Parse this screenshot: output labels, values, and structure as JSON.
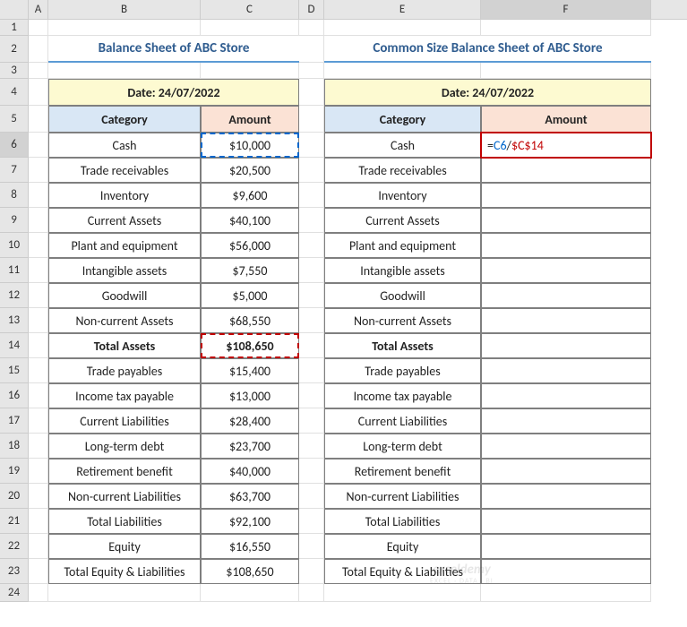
{
  "columns": [
    {
      "label": "A",
      "width": 22
    },
    {
      "label": "B",
      "width": 170
    },
    {
      "label": "C",
      "width": 110
    },
    {
      "label": "D",
      "width": 28
    },
    {
      "label": "E",
      "width": 175
    },
    {
      "label": "F",
      "width": 190
    }
  ],
  "selected_col": "F",
  "row_heights": {
    "1": 18,
    "2": 30,
    "3": 18,
    "4": 30,
    "5": 30,
    "6": 28,
    "7": 28,
    "8": 28,
    "9": 28,
    "10": 28,
    "11": 28,
    "12": 28,
    "13": 28,
    "14": 28,
    "15": 28,
    "16": 28,
    "17": 28,
    "18": 28,
    "19": 28,
    "20": 28,
    "21": 28,
    "22": 28,
    "23": 28,
    "24": 20
  },
  "selected_row": "6",
  "titles": {
    "left": "Balance Sheet of ABC Store",
    "right": "Common Size Balance Sheet of ABC Store"
  },
  "date_label": "Date: 24/07/2022",
  "headers": {
    "category": "Category",
    "amount": "Amount"
  },
  "rows": [
    {
      "cat": "Cash",
      "amt": "$10,000"
    },
    {
      "cat": "Trade receivables",
      "amt": "$20,500"
    },
    {
      "cat": "Inventory",
      "amt": "$9,600"
    },
    {
      "cat": "Current Assets",
      "amt": "$40,100"
    },
    {
      "cat": "Plant and equipment",
      "amt": "$56,000"
    },
    {
      "cat": "Intangible assets",
      "amt": "$7,550"
    },
    {
      "cat": "Goodwill",
      "amt": "$5,000"
    },
    {
      "cat": "Non-current Assets",
      "amt": "$68,550"
    },
    {
      "cat": "Total Assets",
      "amt": "$108,650",
      "bold": true
    },
    {
      "cat": "Trade payables",
      "amt": "$15,400"
    },
    {
      "cat": "Income tax payable",
      "amt": "$13,000"
    },
    {
      "cat": "Current Liabilities",
      "amt": "$28,400"
    },
    {
      "cat": "Long-term debt",
      "amt": "$23,700"
    },
    {
      "cat": "Retirement benefit",
      "amt": "$40,000"
    },
    {
      "cat": "Non-current Liabilities",
      "amt": "$63,700"
    },
    {
      "cat": "Total Liabilities",
      "amt": "$92,100"
    },
    {
      "cat": "Equity",
      "amt": "$16,550"
    },
    {
      "cat": "Total Equity & Liabilities",
      "amt": "$108,650"
    }
  ],
  "formula": {
    "eq": "=",
    "ref1": "C6",
    "op": "/",
    "ref2": "$C$14"
  },
  "watermark": {
    "line1": "exceldemy",
    "line2": "EXCEL · DATA · BI"
  },
  "colors": {
    "title_text": "#2f5c8f",
    "title_underline": "#5b9bd5",
    "date_bg": "#fdfad1",
    "cat_bg": "#d9e7f5",
    "amt_bg": "#fbe2d5",
    "border": "#7f7f7f",
    "sel_blue": "#0066cc",
    "sel_red": "#c00000",
    "grid": "#e0e0e0",
    "header_bg": "#e6e6e6"
  }
}
